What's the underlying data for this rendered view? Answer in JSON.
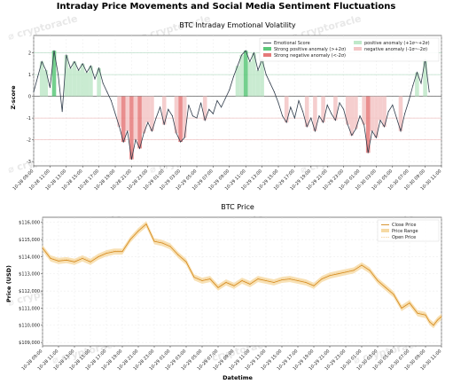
{
  "figure": {
    "title": "Intraday Price Movements and Social Media Sentiment Fluctuations",
    "watermark": "cryptoracle"
  },
  "x_tick_labels": [
    "10-28 09:00",
    "10-28 11:00",
    "10-28 13:00",
    "10-28 15:00",
    "10-28 17:00",
    "10-28 19:00",
    "10-28 21:00",
    "10-28 23:00",
    "10-29 01:00",
    "10-29 03:00",
    "10-29 05:00",
    "10-29 07:00",
    "10-29 09:00",
    "10-29 11:00",
    "10-29 13:00",
    "10-29 15:00",
    "10-29 17:00",
    "10-29 19:00",
    "10-29 21:00",
    "10-29 23:00",
    "10-30 01:00",
    "10-30 03:00",
    "10-30 05:00",
    "10-30 07:00",
    "10-30 09:00",
    "10-30 11:00"
  ],
  "chart_data": [
    {
      "type": "line",
      "title": "BTC Intraday Emotional Volatility",
      "xlabel": "",
      "ylabel": "Z-score",
      "ylim": [
        -3.2,
        2.8
      ],
      "yticks": [
        -3,
        -2,
        -1,
        0,
        1,
        2
      ],
      "reference_lines": [
        2,
        1,
        0,
        -1,
        -2
      ],
      "legend_position": "top-right",
      "legend": {
        "line": "Emotional Score",
        "strong_pos": "Strong positive anomaly (>+2σ)",
        "strong_neg": "Strong negative anomaly (<-2σ)",
        "pos": "positive anomaly (+1σ~+2σ)",
        "neg": "negative anomaly (-1σ~-2σ)"
      },
      "colors": {
        "line": "#2f3b4a",
        "strong_pos": "#5cc87a",
        "pos": "#bfe8c9",
        "strong_neg": "#e57a7a",
        "neg": "#f3c6c6",
        "ref_line": "#9fd3b0",
        "ref_neg": "#e8a8a8"
      },
      "series": [
        {
          "name": "Emotional Score",
          "x_hours": [
            0,
            0.5,
            1,
            1.5,
            2,
            2.5,
            3,
            3.5,
            4,
            4.5,
            5,
            5.5,
            6,
            6.5,
            7,
            7.5,
            8,
            8.5,
            9,
            9.5,
            10,
            10.5,
            11,
            11.5,
            12,
            12.5,
            13,
            13.5,
            14,
            14.5,
            15,
            15.5,
            16,
            16.5,
            17,
            17.5,
            18,
            18.5,
            19,
            19.5,
            20,
            20.5,
            21,
            21.5,
            22,
            22.5,
            23,
            23.5,
            24,
            24.5,
            25,
            25.5,
            26,
            26.5,
            27,
            27.5,
            28,
            28.5,
            29,
            29.5,
            30,
            30.5,
            31,
            31.5,
            32,
            32.5,
            33,
            33.5,
            34,
            34.5,
            35,
            35.5,
            36,
            36.5,
            37,
            37.5,
            38,
            38.5,
            39,
            39.5,
            40,
            40.5,
            41,
            41.5,
            42,
            42.5,
            43,
            43.5,
            44,
            44.5,
            45,
            45.5,
            46,
            46.5,
            47,
            47.5,
            48,
            48.5
          ],
          "values": [
            0.2,
            0.9,
            1.6,
            1.2,
            0.4,
            2.1,
            1.0,
            -0.7,
            1.9,
            1.3,
            1.6,
            1.2,
            1.5,
            1.1,
            1.4,
            0.8,
            1.3,
            0.6,
            0.2,
            -0.2,
            -0.8,
            -1.4,
            -2.1,
            -1.6,
            -2.9,
            -2.0,
            -2.4,
            -1.7,
            -1.2,
            -1.6,
            -1.0,
            -0.5,
            -1.3,
            -0.6,
            -0.9,
            -1.7,
            -2.1,
            -1.9,
            -0.4,
            -0.9,
            -1.0,
            -0.3,
            -1.1,
            -0.6,
            -0.8,
            -0.2,
            -0.5,
            -0.1,
            0.3,
            0.9,
            1.4,
            1.9,
            2.1,
            1.6,
            2.0,
            1.2,
            1.7,
            1.0,
            0.6,
            0.2,
            -0.3,
            -0.9,
            -1.2,
            -0.5,
            -1.0,
            -0.2,
            -0.7,
            -1.4,
            -1.0,
            -1.6,
            -0.9,
            -1.2,
            -0.4,
            -0.8,
            -1.1,
            -0.3,
            -0.6,
            -1.3,
            -1.8,
            -1.5,
            -0.9,
            -1.3,
            -2.6,
            -1.6,
            -1.9,
            -1.1,
            -1.4,
            -0.7,
            -0.4,
            -1.0,
            -1.6,
            -0.8,
            -0.2,
            0.5,
            1.1,
            0.6,
            1.7,
            0.2
          ]
        }
      ]
    },
    {
      "type": "line",
      "title": "BTC Price",
      "xlabel": "Datetime",
      "ylabel": "Price (USD)",
      "ylim": [
        108800,
        116300
      ],
      "yticks": [
        109000,
        110000,
        111000,
        112000,
        113000,
        114000,
        115000,
        116000
      ],
      "ytick_labels": [
        "$109,000",
        "$110,000",
        "$111,000",
        "$112,000",
        "$113,000",
        "$114,000",
        "$115,000",
        "$116,000"
      ],
      "legend_position": "top-right",
      "legend": {
        "close": "Close Price",
        "range": "Price Range",
        "open": "Open Price"
      },
      "colors": {
        "close": "#d4891c",
        "range": "#f6d9a3",
        "open": "#f3c98a"
      },
      "series": [
        {
          "name": "Close Price",
          "x_hours": [
            0,
            1,
            2,
            3,
            4,
            5,
            6,
            7,
            8,
            9,
            10,
            11,
            12,
            13,
            14,
            15,
            16,
            17,
            18,
            19,
            20,
            21,
            22,
            23,
            24,
            25,
            26,
            27,
            28,
            29,
            30,
            31,
            32,
            33,
            34,
            35,
            36,
            37,
            38,
            39,
            40,
            41,
            42,
            43,
            44,
            45,
            46,
            47,
            48
          ],
          "values": [
            114500,
            113900,
            113750,
            113800,
            113700,
            113900,
            113700,
            114000,
            114200,
            114300,
            114300,
            115000,
            115500,
            115900,
            114900,
            114800,
            114600,
            114100,
            113700,
            112800,
            112600,
            112700,
            112200,
            112500,
            112300,
            112600,
            112400,
            112700,
            112600,
            112500,
            112650,
            112700,
            112600,
            112500,
            112300,
            112700,
            112900,
            113000,
            113100,
            113200,
            113500,
            113200,
            112600,
            112200,
            111800,
            111000,
            111300,
            110700,
            110600
          ]
        },
        {
          "name": "Close Price (tail)",
          "x_hours": [
            48,
            48.5,
            49,
            49.5,
            50
          ],
          "values": [
            110600,
            110200,
            110000,
            110300,
            110500
          ]
        }
      ]
    }
  ]
}
